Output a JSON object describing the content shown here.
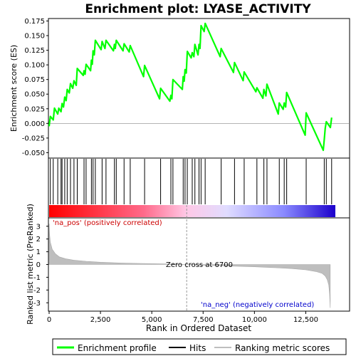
{
  "chart_data": {
    "type": "line",
    "title": "Enrichment plot: LYASE_ACTIVITY",
    "x_axis": {
      "label": "Rank in Ordered Dataset",
      "range": [
        0,
        14600
      ],
      "ticks": [
        0,
        2500,
        5000,
        7500,
        10000,
        12500
      ],
      "tick_labels": [
        "0",
        "2,500",
        "5,000",
        "7,500",
        "10,000",
        "12,500"
      ]
    },
    "panels": {
      "enrichment": {
        "ylabel": "Enrichment score (ES)",
        "ylim": [
          -0.058,
          0.178
        ],
        "ticks": [
          -0.05,
          -0.025,
          0.0,
          0.025,
          0.05,
          0.075,
          0.1,
          0.125,
          0.15,
          0.175
        ],
        "tick_labels": [
          "-0.050",
          "-0.025",
          "0.000",
          "0.025",
          "0.050",
          "0.075",
          "0.100",
          "0.125",
          "0.150",
          "0.175"
        ],
        "grid": false
      },
      "metric": {
        "ylabel": "Ranked list metric (PreRanked)",
        "ylim": [
          -3.6,
          3.6
        ],
        "ticks": [
          -3,
          -2,
          -1,
          0,
          1,
          2,
          3
        ],
        "tick_labels": [
          "-3",
          "-2",
          "-1",
          "0",
          "1",
          "2",
          "3"
        ],
        "zero_cross": 6700,
        "zero_cross_label": "Zero cross at 6700",
        "pos_label": "'na_pos' (positively correlated)",
        "neg_label": "'na_neg' (negatively correlated)"
      }
    },
    "series": [
      {
        "name": "Enrichment profile",
        "color": "#00ff00",
        "x": [
          0,
          60,
          200,
          260,
          420,
          470,
          580,
          630,
          700,
          760,
          830,
          880,
          980,
          1040,
          1150,
          1210,
          1320,
          1370,
          1660,
          1700,
          1750,
          1800,
          2020,
          2060,
          2100,
          2140,
          2200,
          2250,
          2530,
          2580,
          2720,
          2770,
          3130,
          3180,
          3220,
          3270,
          3600,
          3650,
          3900,
          3950,
          4600,
          4650,
          5380,
          5430,
          5880,
          5930,
          5980,
          6030,
          6490,
          6530,
          6580,
          6620,
          6680,
          6730,
          6920,
          6970,
          7050,
          7100,
          7250,
          7300,
          7350,
          7400,
          7550,
          7600,
          8330,
          8380,
          8980,
          9030,
          9450,
          9500,
          10070,
          10120,
          10410,
          10460,
          10560,
          10610,
          11160,
          11210,
          11400,
          11450,
          11520,
          11570,
          12470,
          12520,
          13350,
          13400,
          13450,
          13500,
          13700,
          13760
        ],
        "y": [
          -0.005,
          0.012,
          0.006,
          0.026,
          0.016,
          0.026,
          0.02,
          0.034,
          0.028,
          0.045,
          0.039,
          0.058,
          0.052,
          0.068,
          0.06,
          0.073,
          0.065,
          0.094,
          0.082,
          0.09,
          0.084,
          0.101,
          0.09,
          0.108,
          0.101,
          0.124,
          0.117,
          0.142,
          0.126,
          0.14,
          0.128,
          0.142,
          0.124,
          0.135,
          0.128,
          0.142,
          0.124,
          0.136,
          0.122,
          0.133,
          0.08,
          0.099,
          0.042,
          0.06,
          0.038,
          0.048,
          0.042,
          0.075,
          0.058,
          0.08,
          0.072,
          0.092,
          0.086,
          0.123,
          0.112,
          0.121,
          0.114,
          0.135,
          0.117,
          0.135,
          0.128,
          0.167,
          0.157,
          0.171,
          0.114,
          0.128,
          0.087,
          0.104,
          0.073,
          0.088,
          0.054,
          0.061,
          0.043,
          0.058,
          0.047,
          0.067,
          0.016,
          0.035,
          0.024,
          0.035,
          0.028,
          0.053,
          -0.02,
          0.018,
          -0.046,
          -0.028,
          -0.008,
          0.003,
          -0.007,
          0.01
        ]
      },
      {
        "name": "Hits",
        "color": "#000000",
        "x": [
          60,
          200,
          420,
          580,
          630,
          760,
          880,
          1040,
          1210,
          1370,
          1700,
          1800,
          2060,
          2140,
          2250,
          2580,
          2770,
          3180,
          3270,
          3650,
          3950,
          4650,
          5430,
          5930,
          6030,
          6530,
          6620,
          6730,
          6970,
          7100,
          7300,
          7400,
          7600,
          8380,
          9030,
          9500,
          10120,
          10460,
          10610,
          11210,
          11450,
          11570,
          12520,
          13400,
          13500,
          13760
        ]
      },
      {
        "name": "Ranking metric scores",
        "color": "#bebebe",
        "x": [
          0,
          20,
          60,
          150,
          300,
          500,
          800,
          1200,
          1800,
          2500,
          3500,
          4500,
          5500,
          6300,
          6700,
          7200,
          8000,
          9000,
          10000,
          11000,
          11800,
          12500,
          13000,
          13300,
          13450,
          13550,
          13620,
          13660,
          13690
        ],
        "y": [
          3.2,
          2.4,
          1.75,
          1.2,
          0.85,
          0.6,
          0.45,
          0.34,
          0.25,
          0.18,
          0.12,
          0.08,
          0.05,
          0.02,
          0.0,
          -0.04,
          -0.08,
          -0.13,
          -0.18,
          -0.25,
          -0.32,
          -0.42,
          -0.55,
          -0.7,
          -0.9,
          -1.2,
          -1.6,
          -2.3,
          -3.4
        ]
      }
    ],
    "legend": {
      "placement": "bottom",
      "items": [
        {
          "label": "Enrichment profile",
          "color": "#00ff00"
        },
        {
          "label": "Hits",
          "color": "#000000"
        },
        {
          "label": "Ranking metric scores",
          "color": "#bebebe"
        }
      ]
    }
  }
}
